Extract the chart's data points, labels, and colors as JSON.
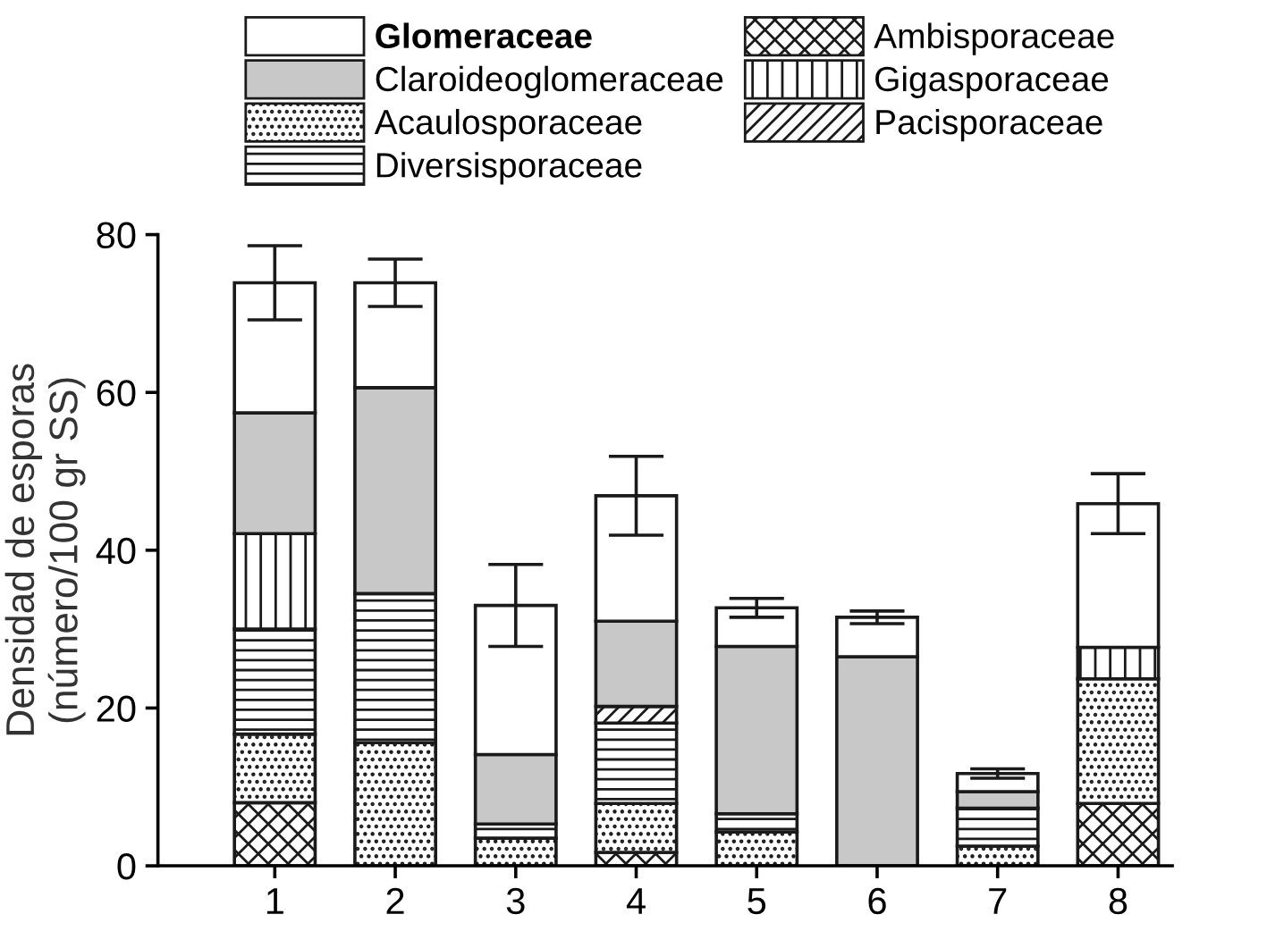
{
  "chart_data": {
    "type": "bar",
    "stacked": true,
    "ylabel": "Densidad de esporas\n(número/100 gr SS)",
    "categories": [
      "1",
      "2",
      "3",
      "4",
      "5",
      "6",
      "7",
      "8"
    ],
    "series": [
      {
        "name": "Ambisporaceae",
        "color": "#1a1a1a",
        "values": [
          8.0,
          null,
          null,
          1.7,
          null,
          null,
          null,
          7.9
        ]
      },
      {
        "name": "Acaulosporaceae",
        "color": "#1a1a1a",
        "values": [
          8.7,
          15.6,
          3.5,
          6.2,
          4.3,
          null,
          2.5,
          15.8
        ]
      },
      {
        "name": "Diversisporaceae",
        "color": "#1a1a1a",
        "values": [
          13.3,
          18.9,
          1.8,
          10.2,
          2.3,
          null,
          4.8,
          null
        ]
      },
      {
        "name": "Pacisporaceae",
        "color": "#1a1a1a",
        "values": [
          null,
          null,
          null,
          2.1,
          null,
          null,
          null,
          null
        ]
      },
      {
        "name": "Gigasporaceae",
        "color": "#1a1a1a",
        "values": [
          12.1,
          null,
          null,
          null,
          null,
          null,
          null,
          4.0
        ]
      },
      {
        "name": "Claroideoglomeraceae",
        "color": "#c8c8c8",
        "values": [
          15.3,
          26.1,
          8.8,
          10.8,
          21.2,
          26.5,
          2.1,
          null
        ]
      },
      {
        "name": "Glomeraceae",
        "color": "#ffffff",
        "values": [
          16.5,
          13.3,
          18.9,
          15.9,
          4.9,
          5.0,
          2.3,
          18.2
        ],
        "errors": [
          4.7,
          3.0,
          5.2,
          5.0,
          1.2,
          0.8,
          0.6,
          3.8
        ]
      }
    ],
    "ylim": [
      0,
      80
    ],
    "yticks": [
      0,
      20,
      40,
      60,
      80
    ],
    "grid": false,
    "legend": "top"
  }
}
